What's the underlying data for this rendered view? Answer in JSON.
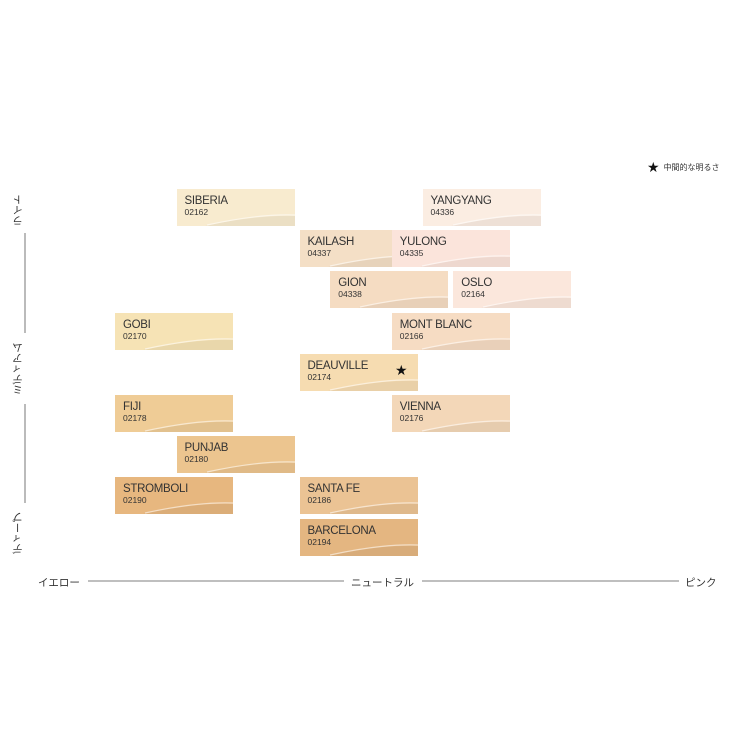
{
  "legend": {
    "marker": "★",
    "label": "中間的な明るさ"
  },
  "axes": {
    "x": {
      "left": "イエロー",
      "center": "ニュートラル",
      "right": "ピンク"
    },
    "y": {
      "top": "ライト",
      "middle": "ミディアム",
      "bottom": "ディープ"
    }
  },
  "colors": {
    "axis_line": "#555555",
    "text": "#333333",
    "marker": "#111111"
  },
  "chart_data": {
    "type": "scatter",
    "title": "",
    "xlabel": "",
    "ylabel": "",
    "x_categories": [
      "イエロー",
      "ニュートラル",
      "ピンク"
    ],
    "y_categories": [
      "ライト",
      "ミディアム",
      "ディープ"
    ],
    "points": [
      {
        "name": "SIBERIA",
        "code": "02162",
        "x": 2,
        "y": 1,
        "color": "#f8ebcf"
      },
      {
        "name": "YANGYANG",
        "code": "04336",
        "x": 6,
        "y": 1,
        "color": "#fbede2"
      },
      {
        "name": "KAILASH",
        "code": "04337",
        "x": 4,
        "y": 2,
        "color": "#f4dfc6"
      },
      {
        "name": "YULONG",
        "code": "04335",
        "x": 5.5,
        "y": 2,
        "color": "#fbe4db"
      },
      {
        "name": "GION",
        "code": "04338",
        "x": 4.5,
        "y": 3,
        "color": "#f5dcc2"
      },
      {
        "name": "OSLO",
        "code": "02164",
        "x": 6.5,
        "y": 3,
        "color": "#fbe7dc"
      },
      {
        "name": "GOBI",
        "code": "02170",
        "x": 1,
        "y": 4,
        "color": "#f6e3b5"
      },
      {
        "name": "MONT BLANC",
        "code": "02166",
        "x": 5.5,
        "y": 4,
        "color": "#f6dcc3"
      },
      {
        "name": "DEAUVILLE",
        "code": "02174",
        "x": 4,
        "y": 5,
        "color": "#f6dcb1",
        "highlight": true
      },
      {
        "name": "FIJI",
        "code": "02178",
        "x": 1,
        "y": 6,
        "color": "#efcc96"
      },
      {
        "name": "VIENNA",
        "code": "02176",
        "x": 5.5,
        "y": 6,
        "color": "#f3d7b8"
      },
      {
        "name": "PUNJAB",
        "code": "02180",
        "x": 2,
        "y": 7,
        "color": "#ecc58f"
      },
      {
        "name": "STROMBOLI",
        "code": "02190",
        "x": 1,
        "y": 8,
        "color": "#e7b77f"
      },
      {
        "name": "SANTA FE",
        "code": "02186",
        "x": 4,
        "y": 8,
        "color": "#ebc394"
      },
      {
        "name": "BARCELONA",
        "code": "02194",
        "x": 4,
        "y": 9,
        "color": "#e4b681"
      }
    ]
  }
}
